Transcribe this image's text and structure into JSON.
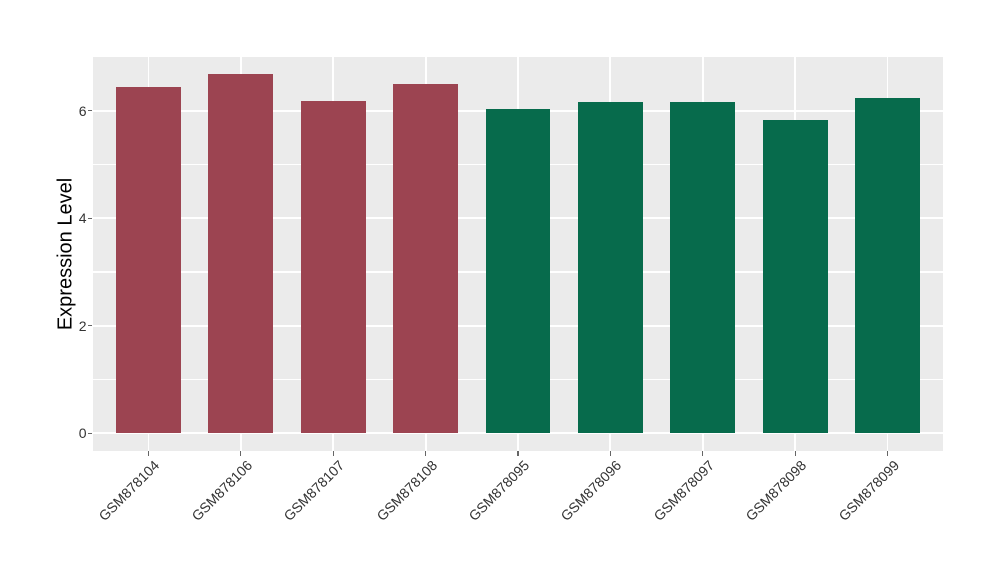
{
  "chart_data": {
    "type": "bar",
    "title": "",
    "xlabel": "",
    "ylabel": "Expression Level",
    "categories": [
      "GSM878104",
      "GSM878106",
      "GSM878107",
      "GSM878108",
      "GSM878095",
      "GSM878096",
      "GSM878097",
      "GSM878098",
      "GSM878099"
    ],
    "values": [
      6.45,
      6.68,
      6.18,
      6.5,
      6.03,
      6.16,
      6.17,
      5.82,
      6.23
    ],
    "bar_colors": [
      "#9C4451",
      "#9C4451",
      "#9C4451",
      "#9C4451",
      "#076B4C",
      "#076B4C",
      "#076B4C",
      "#076B4C",
      "#076B4C"
    ],
    "group_colors": {
      "left_group": "#9C4451",
      "right_group": "#076B4C"
    },
    "y_ticks": [
      "0",
      "2",
      "4",
      "6"
    ],
    "y_tick_values": [
      0,
      2,
      4,
      6
    ],
    "y_minor_values": [
      1,
      3,
      5
    ],
    "ylim": [
      -0.33,
      7.0
    ],
    "x_tick_rotation_deg": 45,
    "bar_width_fraction": 0.7,
    "grid": true,
    "legend_position": "none",
    "panel_bg": "#EBEBEB",
    "grid_color": "#FFFFFF",
    "axis_text_color": "#333333",
    "tick_mark_color": "#666666"
  }
}
